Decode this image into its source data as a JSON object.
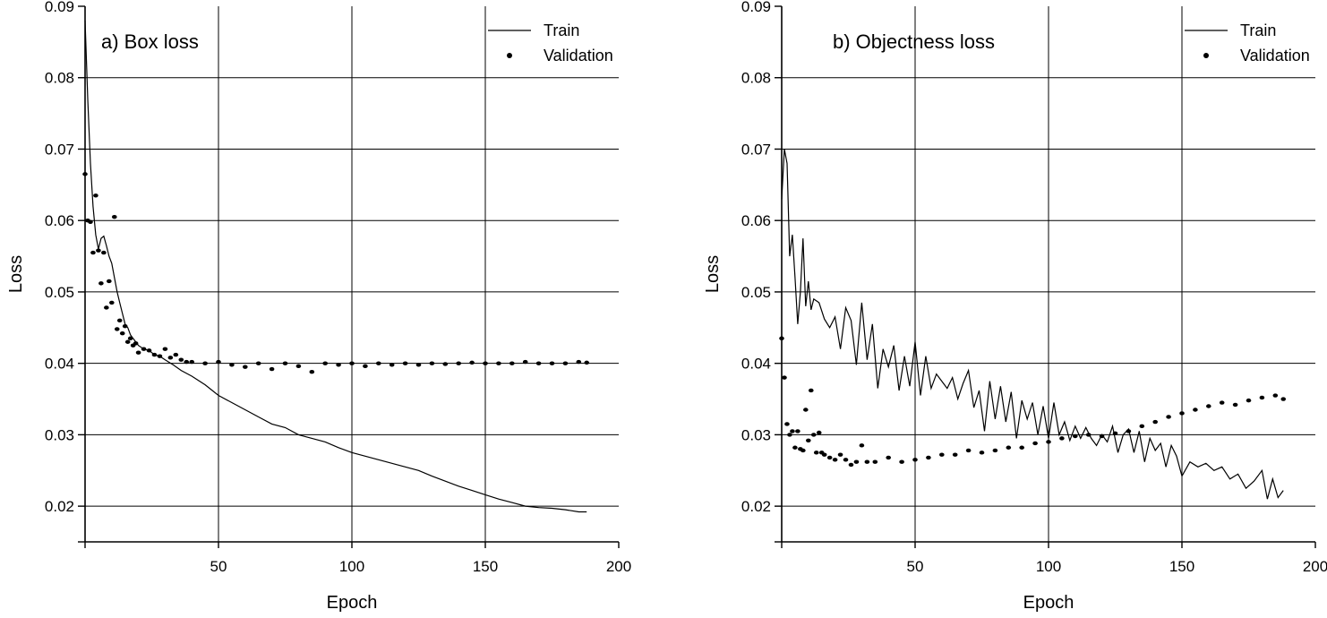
{
  "chart_data": [
    {
      "type": "line",
      "title": "a) Box loss",
      "xlabel": "Epoch",
      "ylabel": "Loss",
      "xlim": [
        0,
        200
      ],
      "ylim": [
        0.015,
        0.09
      ],
      "xticks": [
        "50",
        "100",
        "150",
        "200"
      ],
      "yticks": [
        "0.02",
        "0.03",
        "0.04",
        "0.05",
        "0.06",
        "0.07",
        "0.08",
        "0.09"
      ],
      "grid": true,
      "legend": "top-right",
      "series": [
        {
          "name": "Train",
          "style": "line",
          "x": [
            0,
            1,
            2,
            3,
            4,
            5,
            6,
            7,
            8,
            9,
            10,
            11,
            12,
            13,
            14,
            15,
            16,
            17,
            18,
            19,
            20,
            22,
            24,
            26,
            28,
            30,
            33,
            36,
            40,
            45,
            50,
            55,
            60,
            65,
            70,
            75,
            80,
            85,
            90,
            95,
            100,
            105,
            110,
            115,
            120,
            125,
            130,
            135,
            140,
            145,
            150,
            155,
            160,
            165,
            170,
            175,
            180,
            185,
            188
          ],
          "values": [
            0.088,
            0.077,
            0.068,
            0.062,
            0.058,
            0.056,
            0.0575,
            0.0578,
            0.0565,
            0.055,
            0.054,
            0.052,
            0.05,
            0.0485,
            0.047,
            0.0455,
            0.045,
            0.044,
            0.0435,
            0.043,
            0.0425,
            0.042,
            0.0418,
            0.0412,
            0.041,
            0.0405,
            0.0398,
            0.039,
            0.0382,
            0.037,
            0.0355,
            0.0345,
            0.0335,
            0.0325,
            0.0315,
            0.031,
            0.03,
            0.0295,
            0.029,
            0.0282,
            0.0275,
            0.027,
            0.0265,
            0.026,
            0.0255,
            0.025,
            0.0242,
            0.0235,
            0.0228,
            0.0222,
            0.0216,
            0.021,
            0.0205,
            0.02,
            0.0198,
            0.0197,
            0.0195,
            0.0192,
            0.0192
          ]
        },
        {
          "name": "Validation",
          "style": "dots",
          "x": [
            0,
            1,
            2,
            3,
            4,
            5,
            6,
            7,
            8,
            9,
            10,
            11,
            12,
            13,
            14,
            15,
            16,
            17,
            18,
            19,
            20,
            22,
            24,
            26,
            28,
            30,
            32,
            34,
            36,
            38,
            40,
            45,
            50,
            55,
            60,
            65,
            70,
            75,
            80,
            85,
            90,
            95,
            100,
            105,
            110,
            115,
            120,
            125,
            130,
            135,
            140,
            145,
            150,
            155,
            160,
            165,
            170,
            175,
            180,
            185,
            188
          ],
          "values": [
            0.0665,
            0.06,
            0.0598,
            0.0555,
            0.0635,
            0.0558,
            0.0512,
            0.0555,
            0.0478,
            0.0515,
            0.0485,
            0.0605,
            0.0448,
            0.046,
            0.0442,
            0.0452,
            0.043,
            0.0435,
            0.0425,
            0.0428,
            0.0415,
            0.042,
            0.0418,
            0.0412,
            0.041,
            0.042,
            0.0408,
            0.0412,
            0.0405,
            0.0402,
            0.0402,
            0.04,
            0.0402,
            0.0398,
            0.0395,
            0.04,
            0.0392,
            0.04,
            0.0396,
            0.0388,
            0.04,
            0.0398,
            0.04,
            0.0396,
            0.04,
            0.0398,
            0.04,
            0.0398,
            0.04,
            0.0399,
            0.04,
            0.0401,
            0.04,
            0.04,
            0.04,
            0.0402,
            0.04,
            0.04,
            0.04,
            0.0402,
            0.0401
          ]
        }
      ]
    },
    {
      "type": "line",
      "title": "b) Objectness loss",
      "xlabel": "Epoch",
      "ylabel": "Loss",
      "xlim": [
        0,
        200
      ],
      "ylim": [
        0.015,
        0.09
      ],
      "xticks": [
        "50",
        "100",
        "150",
        "200"
      ],
      "yticks": [
        "0.02",
        "0.03",
        "0.04",
        "0.05",
        "0.06",
        "0.07",
        "0.08",
        "0.09"
      ],
      "grid": true,
      "legend": "top-right",
      "series": [
        {
          "name": "Train",
          "style": "line",
          "x": [
            0,
            1,
            2,
            3,
            4,
            5,
            6,
            7,
            8,
            9,
            10,
            11,
            12,
            14,
            16,
            18,
            20,
            22,
            24,
            26,
            28,
            30,
            32,
            34,
            36,
            38,
            40,
            42,
            44,
            46,
            48,
            50,
            52,
            54,
            56,
            58,
            60,
            62,
            64,
            66,
            68,
            70,
            72,
            74,
            76,
            78,
            80,
            82,
            84,
            86,
            88,
            90,
            92,
            94,
            96,
            98,
            100,
            102,
            104,
            106,
            108,
            110,
            112,
            114,
            116,
            118,
            120,
            122,
            124,
            126,
            128,
            130,
            132,
            134,
            136,
            138,
            140,
            142,
            144,
            146,
            148,
            150,
            153,
            156,
            159,
            162,
            165,
            168,
            171,
            174,
            177,
            180,
            182,
            184,
            186,
            188
          ],
          "values": [
            0.063,
            0.07,
            0.068,
            0.055,
            0.058,
            0.052,
            0.0455,
            0.05,
            0.0575,
            0.048,
            0.0515,
            0.0475,
            0.049,
            0.0485,
            0.0462,
            0.045,
            0.0465,
            0.042,
            0.0478,
            0.046,
            0.0398,
            0.0485,
            0.0405,
            0.0455,
            0.0365,
            0.042,
            0.0395,
            0.0425,
            0.0362,
            0.041,
            0.0368,
            0.043,
            0.0355,
            0.041,
            0.0365,
            0.0385,
            0.0375,
            0.0365,
            0.038,
            0.035,
            0.0372,
            0.039,
            0.0338,
            0.0362,
            0.0305,
            0.0375,
            0.0322,
            0.0368,
            0.0318,
            0.036,
            0.0295,
            0.0348,
            0.0322,
            0.0345,
            0.03,
            0.034,
            0.0295,
            0.0345,
            0.03,
            0.0318,
            0.0292,
            0.0312,
            0.0295,
            0.031,
            0.0295,
            0.0285,
            0.03,
            0.029,
            0.0312,
            0.0275,
            0.03,
            0.0308,
            0.0275,
            0.0305,
            0.0262,
            0.0295,
            0.0278,
            0.0288,
            0.0255,
            0.0285,
            0.027,
            0.0242,
            0.0262,
            0.0255,
            0.026,
            0.025,
            0.0255,
            0.0238,
            0.0245,
            0.0225,
            0.0235,
            0.025,
            0.021,
            0.0238,
            0.0212,
            0.0222
          ]
        },
        {
          "name": "Validation",
          "style": "dots",
          "x": [
            0,
            1,
            2,
            3,
            4,
            5,
            6,
            7,
            8,
            9,
            10,
            11,
            12,
            13,
            14,
            15,
            16,
            18,
            20,
            22,
            24,
            26,
            28,
            30,
            32,
            35,
            40,
            45,
            50,
            55,
            60,
            65,
            70,
            75,
            80,
            85,
            90,
            95,
            100,
            105,
            110,
            115,
            120,
            125,
            130,
            135,
            140,
            145,
            150,
            155,
            160,
            165,
            170,
            175,
            180,
            185,
            188
          ],
          "values": [
            0.0435,
            0.038,
            0.0315,
            0.03,
            0.0305,
            0.0282,
            0.0305,
            0.028,
            0.0278,
            0.0335,
            0.0292,
            0.0362,
            0.03,
            0.0275,
            0.0303,
            0.0275,
            0.0272,
            0.0268,
            0.0265,
            0.0272,
            0.0265,
            0.0258,
            0.0262,
            0.0285,
            0.0262,
            0.0262,
            0.0268,
            0.0262,
            0.0265,
            0.0268,
            0.0272,
            0.0272,
            0.0278,
            0.0275,
            0.0278,
            0.0282,
            0.0282,
            0.0288,
            0.029,
            0.0295,
            0.0298,
            0.03,
            0.0298,
            0.0302,
            0.0305,
            0.0312,
            0.0318,
            0.0325,
            0.033,
            0.0335,
            0.034,
            0.0345,
            0.0342,
            0.0348,
            0.0352,
            0.0355,
            0.035
          ]
        }
      ]
    }
  ]
}
